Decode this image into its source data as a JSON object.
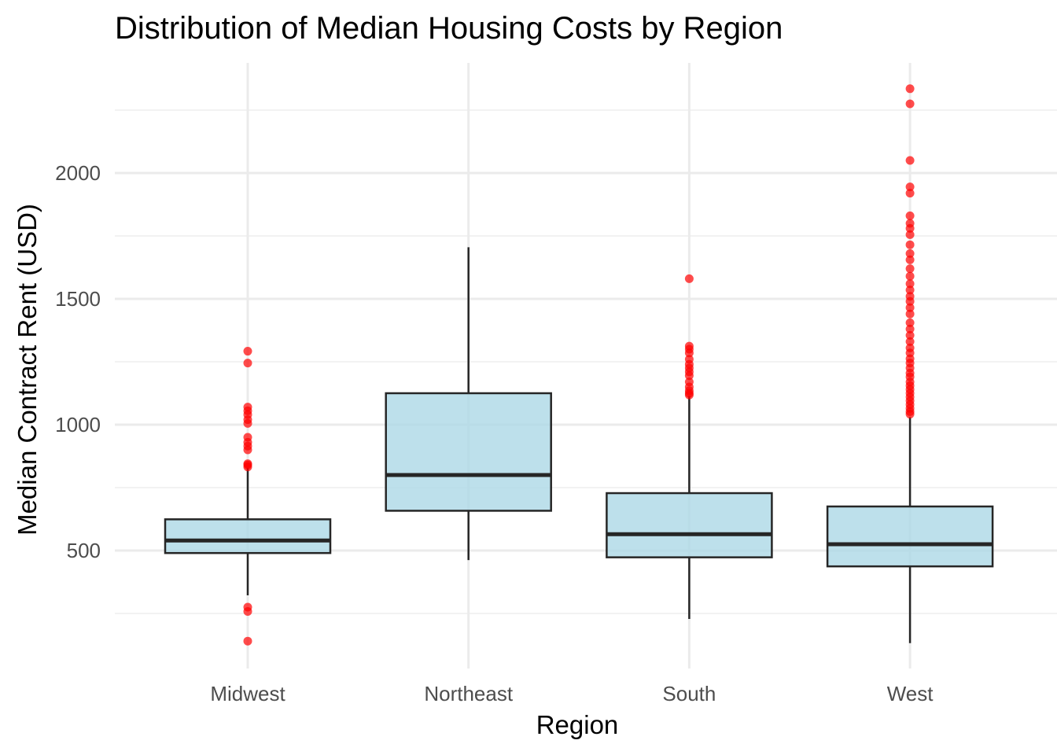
{
  "chart_data": {
    "type": "boxplot",
    "title": "Distribution of Median Housing Costs by Region",
    "xlabel": "Region",
    "ylabel": "Median Contract Rent (USD)",
    "ylim": [
      120,
      2370
    ],
    "yticks": [
      500,
      1000,
      1500,
      2000
    ],
    "grid": true,
    "colors": {
      "box_fill": "#add8e6",
      "box_stroke": "#262626",
      "outlier": "#ff0000",
      "grid_major": "#ebebeb",
      "grid_minor": "#f2f2f2"
    },
    "categories": [
      "Midwest",
      "Northeast",
      "South",
      "West"
    ],
    "series": [
      {
        "category": "Midwest",
        "whisker_low": 322,
        "q1": 490,
        "median": 540,
        "q3": 624,
        "whisker_high": 828,
        "outliers": [
          1292,
          1245,
          1070,
          1055,
          1040,
          1020,
          1005,
          950,
          930,
          915,
          900,
          845,
          840,
          832,
          275,
          258,
          140
        ]
      },
      {
        "category": "Northeast",
        "whisker_low": 462,
        "q1": 658,
        "median": 800,
        "q3": 1125,
        "whisker_high": 1705,
        "outliers": []
      },
      {
        "category": "South",
        "whisker_low": 228,
        "q1": 473,
        "median": 565,
        "q3": 728,
        "whisker_high": 1115,
        "outliers": [
          1580,
          1312,
          1300,
          1285,
          1260,
          1240,
          1225,
          1210,
          1195,
          1170,
          1150,
          1135,
          1125,
          1118
        ]
      },
      {
        "category": "West",
        "whisker_low": 132,
        "q1": 437,
        "median": 525,
        "q3": 675,
        "whisker_high": 1030,
        "outliers": [
          2335,
          2275,
          2050,
          1945,
          1920,
          1830,
          1800,
          1780,
          1755,
          1715,
          1680,
          1655,
          1620,
          1590,
          1560,
          1535,
          1510,
          1490,
          1465,
          1440,
          1405,
          1380,
          1355,
          1330,
          1305,
          1285,
          1262,
          1245,
          1225,
          1205,
          1190,
          1170,
          1155,
          1140,
          1125,
          1110,
          1095,
          1080,
          1065,
          1052,
          1042
        ]
      }
    ]
  }
}
